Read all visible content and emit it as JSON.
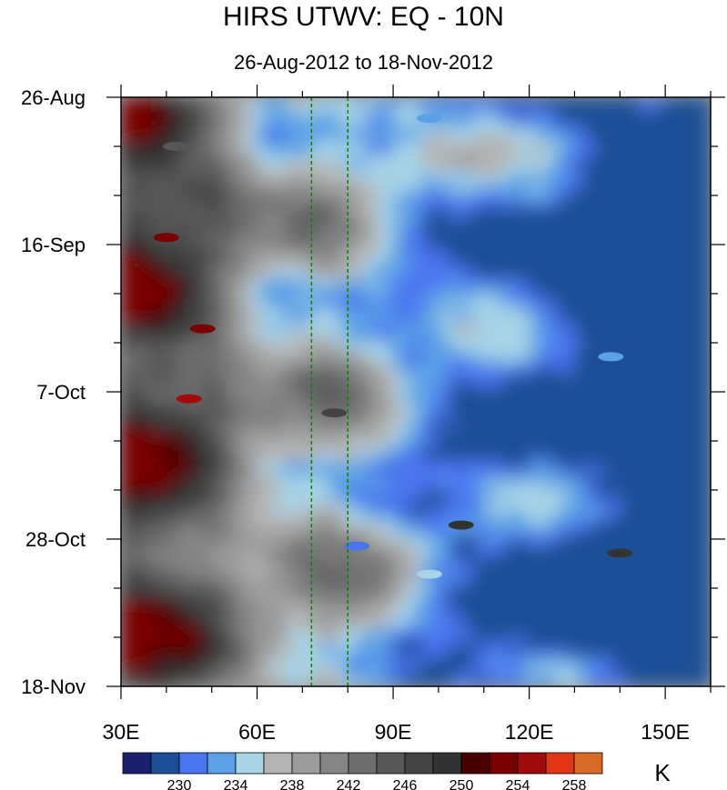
{
  "chart_data": {
    "type": "heatmap",
    "title": "HIRS UTWV: EQ - 10N",
    "subtitle": "26-Aug-2012 to 18-Nov-2012",
    "x_ticks": [
      {
        "value": 30,
        "label": "30E"
      },
      {
        "value": 60,
        "label": "60E"
      },
      {
        "value": 90,
        "label": "90E"
      },
      {
        "value": 120,
        "label": "120E"
      },
      {
        "value": 150,
        "label": "150E"
      }
    ],
    "xlim": [
      30,
      160
    ],
    "y_ticks": [
      {
        "value": 0,
        "label": "26-Aug"
      },
      {
        "value": 21,
        "label": "16-Sep"
      },
      {
        "value": 42,
        "label": "7-Oct"
      },
      {
        "value": 63,
        "label": "28-Oct"
      },
      {
        "value": 84,
        "label": "18-Nov"
      }
    ],
    "ylim_days": [
      0,
      84
    ],
    "reference_lines_lon": [
      72,
      80
    ],
    "colorbar": {
      "unit": "K",
      "levels": [
        228,
        230,
        232,
        234,
        236,
        238,
        240,
        242,
        244,
        246,
        248,
        250,
        252,
        254,
        256,
        258
      ],
      "label_levels": [
        230,
        234,
        238,
        242,
        246,
        250,
        254,
        258
      ],
      "colors": [
        "#1a1f6e",
        "#1c4f96",
        "#4b74ef",
        "#5aa0e6",
        "#a8d4e6",
        "#b3b3b3",
        "#9b9b9b",
        "#858585",
        "#6e6e6e",
        "#575757",
        "#444444",
        "#333333",
        "#4a0000",
        "#7a0000",
        "#a10a0a",
        "#e33618",
        "#d86b24"
      ]
    },
    "features": [
      {
        "lon": 42,
        "day": 7,
        "value": 245
      },
      {
        "lon": 48,
        "day": 33,
        "value": 253
      },
      {
        "lon": 40,
        "day": 20,
        "value": 253
      },
      {
        "lon": 45,
        "day": 43,
        "value": 254
      },
      {
        "lon": 77,
        "day": 45,
        "value": 246
      },
      {
        "lon": 98,
        "day": 3,
        "value": 232
      },
      {
        "lon": 82,
        "day": 64,
        "value": 230
      },
      {
        "lon": 138,
        "day": 37,
        "value": 232
      },
      {
        "lon": 98,
        "day": 68,
        "value": 234
      },
      {
        "lon": 105,
        "day": 61,
        "value": 248
      },
      {
        "lon": 140,
        "day": 65,
        "value": 248
      }
    ]
  }
}
